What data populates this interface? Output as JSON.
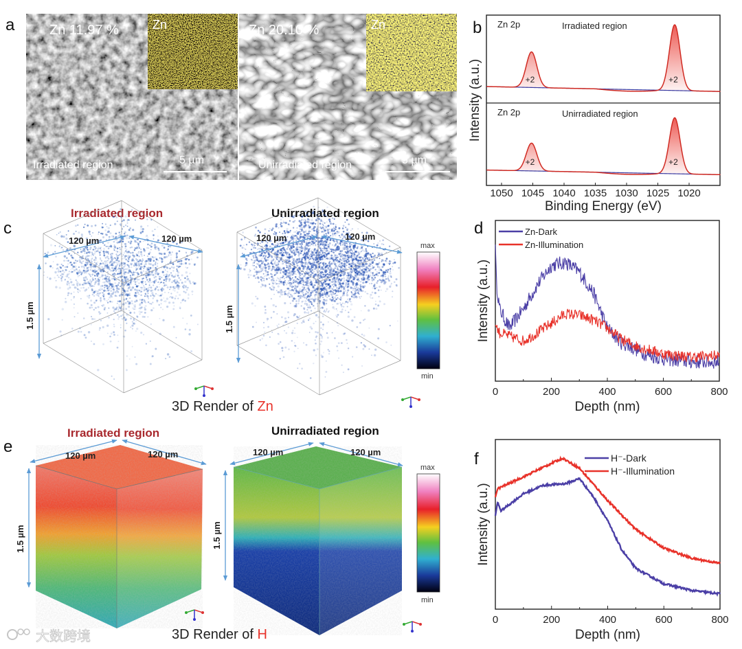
{
  "panel_labels": {
    "a": "a",
    "b": "b",
    "c": "c",
    "d": "d",
    "e": "e",
    "f": "f"
  },
  "panel_a": {
    "left": {
      "zn_percent": "Zn  11.97 %",
      "inset_label": "Zn",
      "region": "Irradiated region",
      "scale_bar": "5 µm"
    },
    "right": {
      "zn_percent": "Zn  20.10 %",
      "inset_label": "Zn",
      "region": "Unirradiated region",
      "scale_bar": "5 µm"
    }
  },
  "panel_c": {
    "left_title": "Irradiated region",
    "right_title": "Unirradiated region",
    "dims": {
      "w1": "120 µm",
      "w2": "120 µm",
      "h": "1.5 µm"
    },
    "colorbar": {
      "max": "max",
      "min": "min"
    },
    "caption_prefix": "3D Render of ",
    "caption_element": "Zn"
  },
  "panel_e": {
    "left_title": "Irradiated region",
    "right_title": "Unirradiated region",
    "dims": {
      "w1": "120 µm",
      "w2": "120 µm",
      "h": "1.5 µm"
    },
    "colorbar": {
      "max": "max",
      "min": "min"
    },
    "caption_prefix": "3D Render of ",
    "caption_element": "H"
  },
  "watermark": "大数跨境",
  "colors": {
    "red": "#e8322a",
    "blue": "#4b3fa6",
    "title_red": "#a8282d",
    "axis_blue": "#5b9bd5"
  },
  "chart_data": [
    {
      "id": "b",
      "type": "line",
      "xlabel": "Binding Energy (eV)",
      "ylabel": "Intensity (a.u.)",
      "xlim": [
        1052.4,
        1015
      ],
      "xticks": [
        1050,
        1045,
        1040,
        1035,
        1030,
        1025,
        1020
      ],
      "subplots": [
        {
          "element": "Zn 2p",
          "title": "Irradiated region",
          "peaks": [
            {
              "center": 1045.2,
              "height": 0.62,
              "label": "+2"
            },
            {
              "center": 1022.3,
              "height": 0.95,
              "label": "+2"
            }
          ],
          "baseline": [
            0.2,
            0.14
          ]
        },
        {
          "element": "Zn 2p",
          "title": "Unirradiated region",
          "peaks": [
            {
              "center": 1045.2,
              "height": 0.55,
              "label": "+2"
            },
            {
              "center": 1022.3,
              "height": 0.88,
              "label": "+2"
            }
          ],
          "baseline": [
            0.2,
            0.14
          ]
        }
      ]
    },
    {
      "id": "d",
      "type": "line",
      "xlabel": "Depth (nm)",
      "ylabel": "Intensity (a.u.)",
      "xlim": [
        0,
        800
      ],
      "ylim": [
        0,
        1
      ],
      "xticks": [
        0,
        200,
        400,
        600,
        800
      ],
      "legend": "top-left",
      "series": [
        {
          "name": "Zn-Dark",
          "color": "#4b3fa6",
          "x": [
            0,
            5,
            15,
            50,
            100,
            150,
            200,
            250,
            300,
            350,
            400,
            450,
            500,
            550,
            600,
            700,
            800
          ],
          "y": [
            0.85,
            0.6,
            0.45,
            0.33,
            0.45,
            0.6,
            0.72,
            0.74,
            0.68,
            0.55,
            0.33,
            0.24,
            0.2,
            0.16,
            0.14,
            0.12,
            0.12
          ]
        },
        {
          "name": "Zn-Illumination",
          "color": "#e8322a",
          "x": [
            0,
            15,
            50,
            100,
            150,
            200,
            250,
            300,
            350,
            400,
            450,
            500,
            600,
            700,
            800
          ],
          "y": [
            0.35,
            0.3,
            0.28,
            0.25,
            0.3,
            0.36,
            0.42,
            0.41,
            0.38,
            0.33,
            0.26,
            0.22,
            0.17,
            0.15,
            0.16
          ]
        }
      ]
    },
    {
      "id": "f",
      "type": "line",
      "xlabel": "Depth (nm)",
      "ylabel": "Intensity (a.u.)",
      "xlim": [
        0,
        800
      ],
      "ylim": [
        0,
        1
      ],
      "xticks": [
        0,
        200,
        400,
        600,
        800
      ],
      "legend": "top-right",
      "series": [
        {
          "name": "H⁻-Dark",
          "color": "#4b3fa6",
          "x": [
            0,
            8,
            20,
            100,
            170,
            250,
            300,
            350,
            400,
            450,
            500,
            600,
            700,
            800
          ],
          "y": [
            0.55,
            0.63,
            0.58,
            0.68,
            0.73,
            0.74,
            0.77,
            0.66,
            0.52,
            0.35,
            0.24,
            0.15,
            0.11,
            0.09
          ]
        },
        {
          "name": "H⁻-Illumination",
          "color": "#e8322a",
          "x": [
            0,
            8,
            100,
            200,
            240,
            300,
            400,
            500,
            600,
            700,
            800
          ],
          "y": [
            0.66,
            0.71,
            0.78,
            0.86,
            0.89,
            0.83,
            0.64,
            0.47,
            0.36,
            0.3,
            0.27
          ]
        }
      ]
    }
  ]
}
